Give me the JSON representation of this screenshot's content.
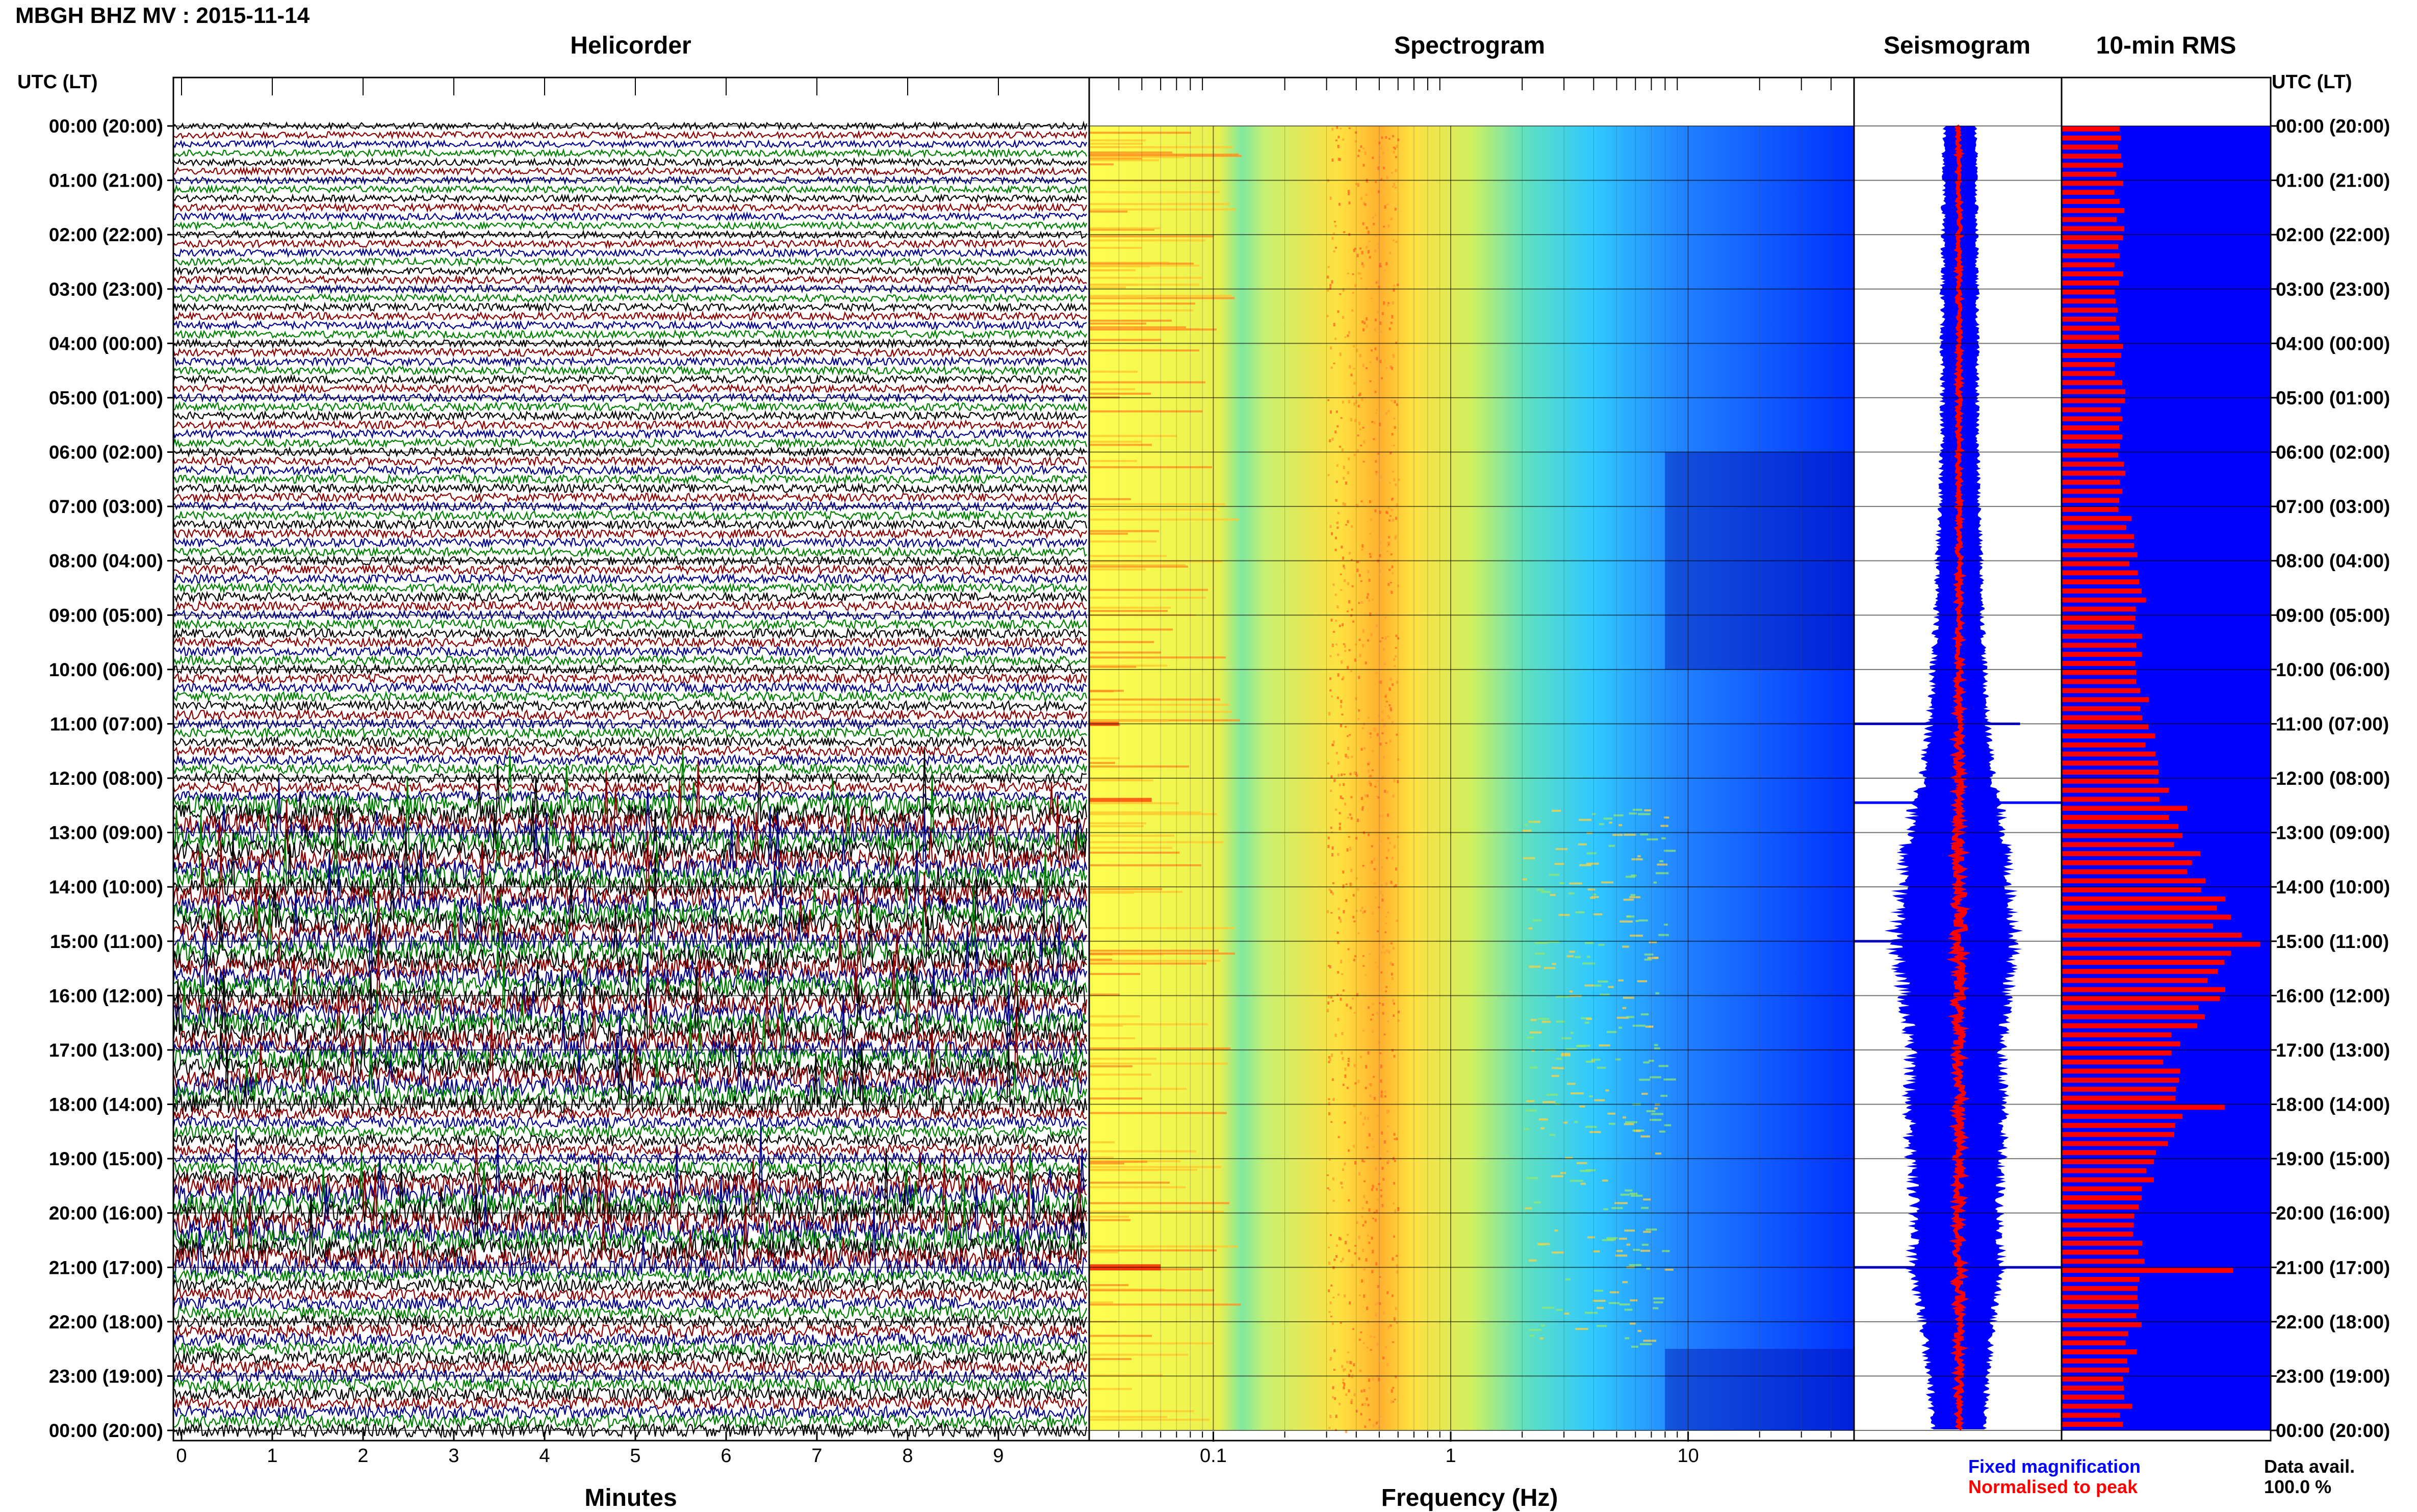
{
  "title": "MBGH BHZ MV : 2015-11-14",
  "panels": {
    "helicorder": "Helicorder",
    "spectrogram": "Spectrogram",
    "seismogram": "Seismogram",
    "rms": "10-min RMS"
  },
  "utc_header": "UTC (LT)",
  "time_labels": [
    "00:00 (20:00)",
    "01:00 (21:00)",
    "02:00 (22:00)",
    "03:00 (23:00)",
    "04:00 (00:00)",
    "05:00 (01:00)",
    "06:00 (02:00)",
    "07:00 (03:00)",
    "08:00 (04:00)",
    "09:00 (05:00)",
    "10:00 (06:00)",
    "11:00 (07:00)",
    "12:00 (08:00)",
    "13:00 (09:00)",
    "14:00 (10:00)",
    "15:00 (11:00)",
    "16:00 (12:00)",
    "17:00 (13:00)",
    "18:00 (14:00)",
    "19:00 (15:00)",
    "20:00 (16:00)",
    "21:00 (17:00)",
    "22:00 (18:00)",
    "23:00 (19:00)",
    "00:00 (20:00)"
  ],
  "legend": {
    "fixed": "Fixed magnification",
    "normalised": "Normalised to peak",
    "fixed_color": "#0000ff",
    "normalised_color": "#ff0000"
  },
  "data_avail": {
    "label": "Data avail.",
    "value": "100.0 %"
  },
  "colors": {
    "trace_cycle": [
      "#000000",
      "#8b0000",
      "#00008b",
      "#008000"
    ],
    "rms_bar": "#ff0000",
    "rms_bg": "#0000ff"
  },
  "chart_data": [
    {
      "type": "line",
      "name": "helicorder",
      "xlabel": "Minutes",
      "xticks": [
        0,
        1,
        2,
        3,
        4,
        5,
        6,
        7,
        8,
        9
      ],
      "xlim": [
        0,
        10
      ],
      "rows_per_hour": 6,
      "ylabel": "UTC (LT)",
      "event_rows": [
        {
          "hour_start": 12.5,
          "hour_end": 18.0,
          "amplitude": "elevated"
        },
        {
          "hour_start": 19.5,
          "hour_end": 21.0,
          "amplitude": "large events"
        }
      ]
    },
    {
      "type": "heatmap",
      "name": "spectrogram",
      "xlabel": "Frequency (Hz)",
      "xscale": "log",
      "xticks": [
        0.1,
        1,
        10
      ],
      "xlim": [
        0.03,
        50
      ],
      "colormap": [
        "#ffff40",
        "#ffa020",
        "#60e0a0",
        "#40c0ff",
        "#1040ff"
      ],
      "peak_band_hz": [
        0.3,
        0.6
      ],
      "high_freq_energy_hours": [
        12.5,
        22.5
      ]
    },
    {
      "type": "area",
      "name": "seismogram",
      "series": [
        {
          "name": "Fixed magnification",
          "color": "#0000ff"
        },
        {
          "name": "Normalised to peak",
          "color": "#ff0000"
        }
      ],
      "envelope_by_hour": [
        0.25,
        0.25,
        0.26,
        0.27,
        0.27,
        0.27,
        0.28,
        0.3,
        0.34,
        0.36,
        0.4,
        0.45,
        0.55,
        0.75,
        0.85,
        0.95,
        0.8,
        0.7,
        0.75,
        0.7,
        0.65,
        0.7,
        0.55,
        0.45,
        0.4
      ]
    },
    {
      "type": "bar",
      "name": "10-min RMS",
      "orientation": "horizontal",
      "bars_per_hour": 6,
      "rms_by_hour": [
        0.28,
        0.28,
        0.28,
        0.28,
        0.28,
        0.28,
        0.28,
        0.3,
        0.35,
        0.38,
        0.38,
        0.4,
        0.45,
        0.55,
        0.72,
        0.8,
        0.7,
        0.5,
        0.55,
        0.45,
        0.35,
        0.4,
        0.35,
        0.32,
        0.3
      ],
      "spikes": [
        {
          "hour": 15.0,
          "value": 0.95
        },
        {
          "hour": 21.0,
          "value": 0.82
        },
        {
          "hour": 18.0,
          "value": 0.78
        },
        {
          "hour": 12.5,
          "value": 0.6
        }
      ]
    }
  ]
}
